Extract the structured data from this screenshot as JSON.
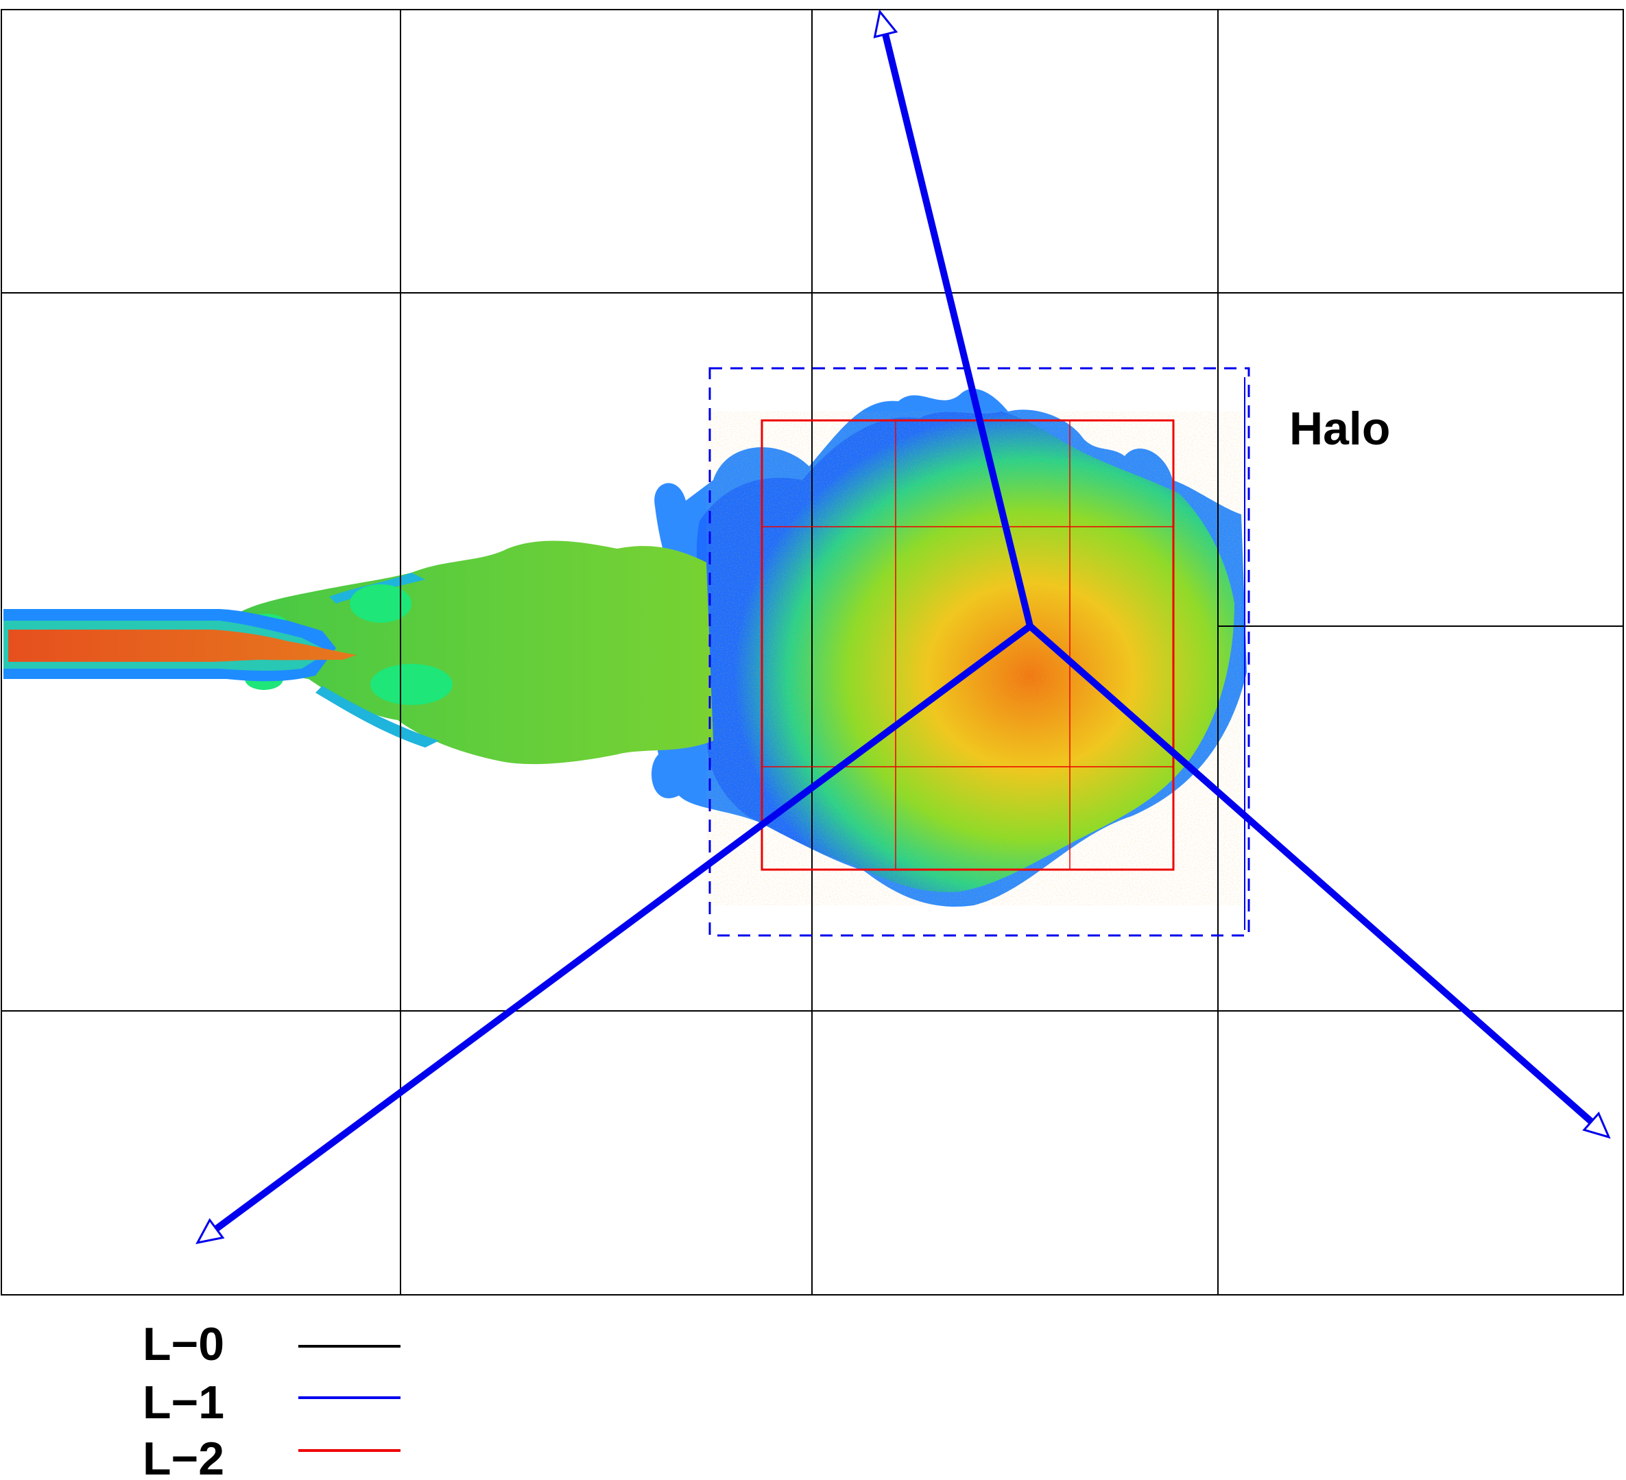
{
  "annotation": {
    "halo_label": "Halo"
  },
  "legend": {
    "entries": [
      {
        "label": "L−0",
        "color": "#000000"
      },
      {
        "label": "L−1",
        "color": "#0000ee"
      },
      {
        "label": "L−2",
        "color": "#ee0000"
      }
    ]
  },
  "colors": {
    "level0_grid": "#000000",
    "level1_mesh": "#0000ee",
    "level2_mesh": "#ee0000",
    "field_low": "#1e3cff",
    "field_mid_low": "#18c8b4",
    "field_mid": "#50d232",
    "field_mid_high": "#e6eb1e",
    "field_high": "#f06e0a",
    "field_peak": "#dc3214"
  },
  "graph": {
    "level0_grid": "4 columns x 4 rows of coarse blocks",
    "level1": "dashed halo box around the refined region with three partition arrows meeting at a central point",
    "level2": "refined box subdivided by 2 vertical and 2 horizontal lines",
    "field": "turbulent jet entering from the left edge and spreading into a plume"
  }
}
